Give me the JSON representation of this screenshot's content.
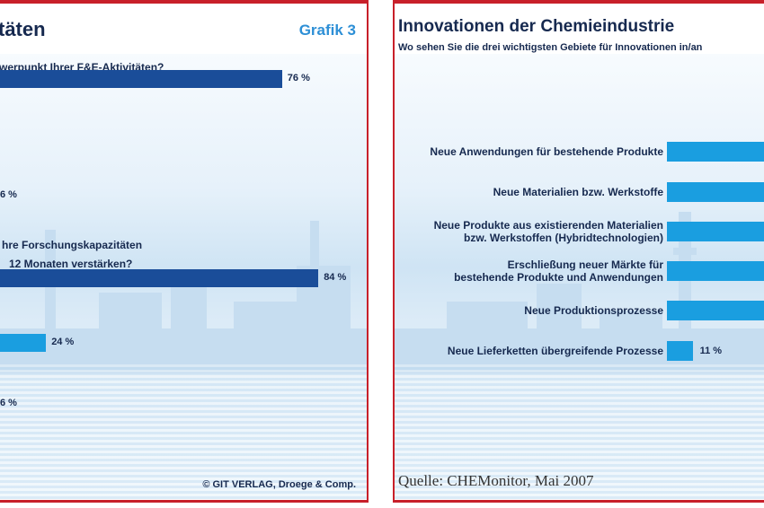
{
  "left_panel": {
    "title_fragment": "täten",
    "grafik_label": "Grafik 3",
    "q1_fragment": "werpunkt Ihrer F&E-Aktivitäten?",
    "q2_line1": "hre Forschungskapazitäten",
    "q2_line2": "12 Monaten verstärken?",
    "credit": "© GIT VERLAG, Droege & Comp."
  },
  "right_panel": {
    "title": "Innovationen der Chemieindustrie",
    "subtitle": "Wo sehen Sie die drei wichtigsten Gebiete für Innovationen in/an",
    "source": "Quelle: CHEMonitor, Mai 2007"
  },
  "chart_data": [
    {
      "type": "bar",
      "orientation": "horizontal",
      "title": "",
      "values_shown": [
        {
          "value": 76,
          "label": "76 %",
          "color": "#1a4d99"
        },
        {
          "value": 6,
          "label": "6 %",
          "color": "#1a4d99"
        },
        {
          "value": 84,
          "label": "84 %",
          "color": "#1a4d99"
        },
        {
          "value": 24,
          "label": "24 %",
          "color": "#1a9ee0"
        },
        {
          "value": 6,
          "label": "6 %",
          "color": "#1a9ee0"
        }
      ]
    },
    {
      "type": "bar",
      "orientation": "horizontal",
      "title": "Innovationen der Chemieindustrie",
      "categories": [
        "Neue Anwendungen für bestehende Produkte",
        "Neue Materialien bzw. Werkstoffe",
        "Neue Produkte aus existierenden Materialien bzw. Werkstoffen (Hybridtechnologien)",
        "Erschließung neuer Märkte für bestehende Produkte und Anwendungen",
        "Neue Produktionsprozesse",
        "Neue Lieferketten übergreifende Prozesse"
      ],
      "category_lines": [
        [
          "Neue Anwendungen für bestehende Produkte"
        ],
        [
          "Neue Materialien bzw. Werkstoffe"
        ],
        [
          "Neue Produkte aus existierenden Materialien",
          "bzw. Werkstoffen (Hybridtechnologien)"
        ],
        [
          "Erschließung neuer Märkte für",
          "bestehende Produkte und Anwendungen"
        ],
        [
          "Neue Produktionsprozesse"
        ],
        [
          "Neue Lieferketten übergreifende Prozesse"
        ]
      ],
      "values": [
        null,
        null,
        null,
        null,
        null,
        11
      ],
      "value_labels": [
        "",
        "",
        "",
        "",
        "",
        "11 %"
      ],
      "color": "#1a9ee0"
    }
  ],
  "colors": {
    "accent_red": "#c8202a",
    "dark_blue": "#1a4d99",
    "light_blue": "#1a9ee0",
    "text": "#16294f",
    "grafik_blue": "#2d8fd6"
  }
}
